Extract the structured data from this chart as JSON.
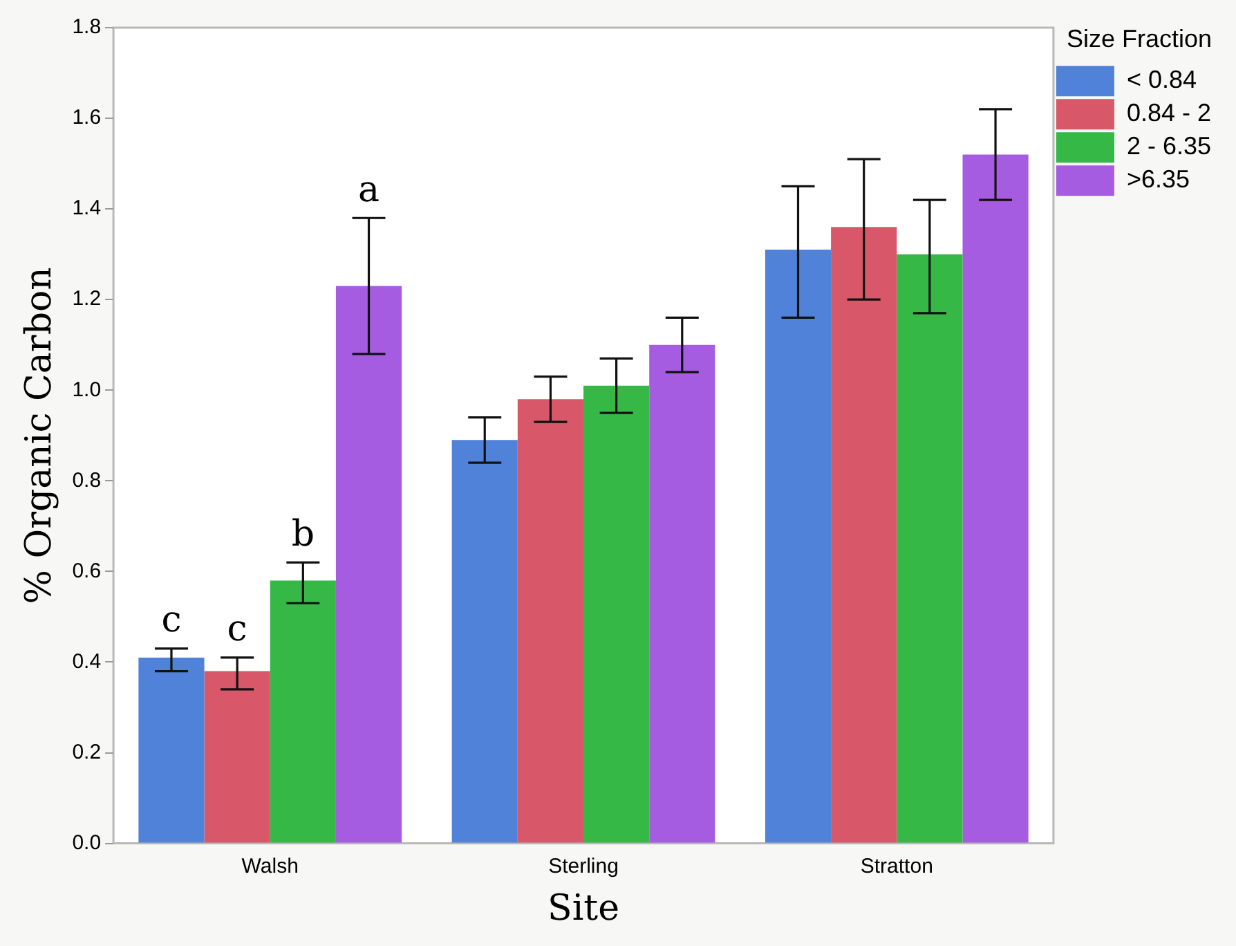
{
  "chart_data": {
    "type": "bar",
    "xlabel": "Site",
    "ylabel": "% Organic Carbon",
    "legend_title": "Size Fraction",
    "categories": [
      "Walsh",
      "Sterling",
      "Stratton"
    ],
    "series": [
      {
        "name": "< 0.84",
        "color": "#4f82d8",
        "values": [
          0.41,
          0.89,
          1.31
        ],
        "errors": [
          [
            0.38,
            0.43
          ],
          [
            0.84,
            0.94
          ],
          [
            1.16,
            1.45
          ]
        ]
      },
      {
        "name": "0.84 - 2",
        "color": "#d85768",
        "values": [
          0.38,
          0.98,
          1.36
        ],
        "errors": [
          [
            0.34,
            0.41
          ],
          [
            0.93,
            1.03
          ],
          [
            1.2,
            1.51
          ]
        ]
      },
      {
        "name": "2 - 6.35",
        "color": "#35b846",
        "values": [
          0.58,
          1.01,
          1.3
        ],
        "errors": [
          [
            0.53,
            0.62
          ],
          [
            0.95,
            1.07
          ],
          [
            1.17,
            1.42
          ]
        ]
      },
      {
        "name": ">6.35",
        "color": "#a65ce0",
        "values": [
          1.23,
          1.1,
          1.52
        ],
        "errors": [
          [
            1.08,
            1.38
          ],
          [
            1.04,
            1.16
          ],
          [
            1.42,
            1.62
          ]
        ]
      }
    ],
    "annotations": [
      "c",
      "c",
      "b",
      "a"
    ],
    "ylim": [
      0,
      1.8
    ],
    "yticks": [
      {
        "value": 0,
        "label": "0.0"
      },
      {
        "value": 0.2,
        "label": "0.2"
      },
      {
        "value": 0.4,
        "label": "0.4"
      },
      {
        "value": 0.6,
        "label": "0.6"
      },
      {
        "value": 0.8,
        "label": "0.8"
      },
      {
        "value": 1,
        "label": "1.0"
      },
      {
        "value": 1.2,
        "label": "1.2"
      },
      {
        "value": 1.4,
        "label": "1.4"
      },
      {
        "value": 1.6,
        "label": "1.6"
      },
      {
        "value": 1.8,
        "label": "1.8"
      }
    ],
    "grid": false,
    "legend": "top right"
  }
}
